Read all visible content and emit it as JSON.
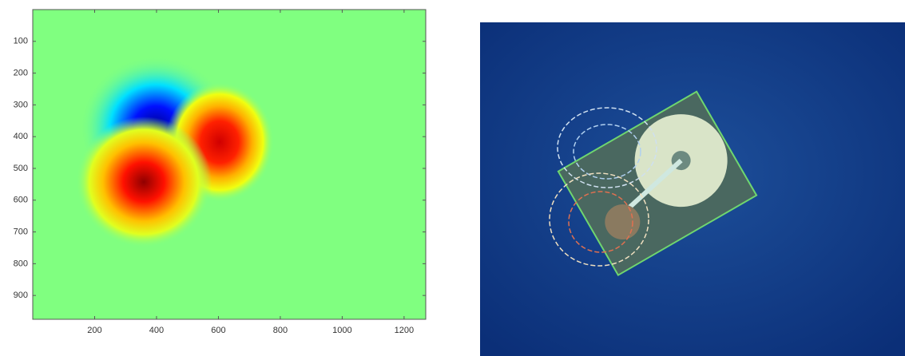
{
  "chart_data": {
    "type": "heatmap",
    "xlim": [
      0,
      1270
    ],
    "ylim": [
      975,
      0
    ],
    "xticks": [
      200,
      400,
      600,
      800,
      1000,
      1200
    ],
    "yticks": [
      100,
      200,
      300,
      400,
      500,
      600,
      700,
      800,
      900
    ],
    "background": "#80ff80"
  }
}
